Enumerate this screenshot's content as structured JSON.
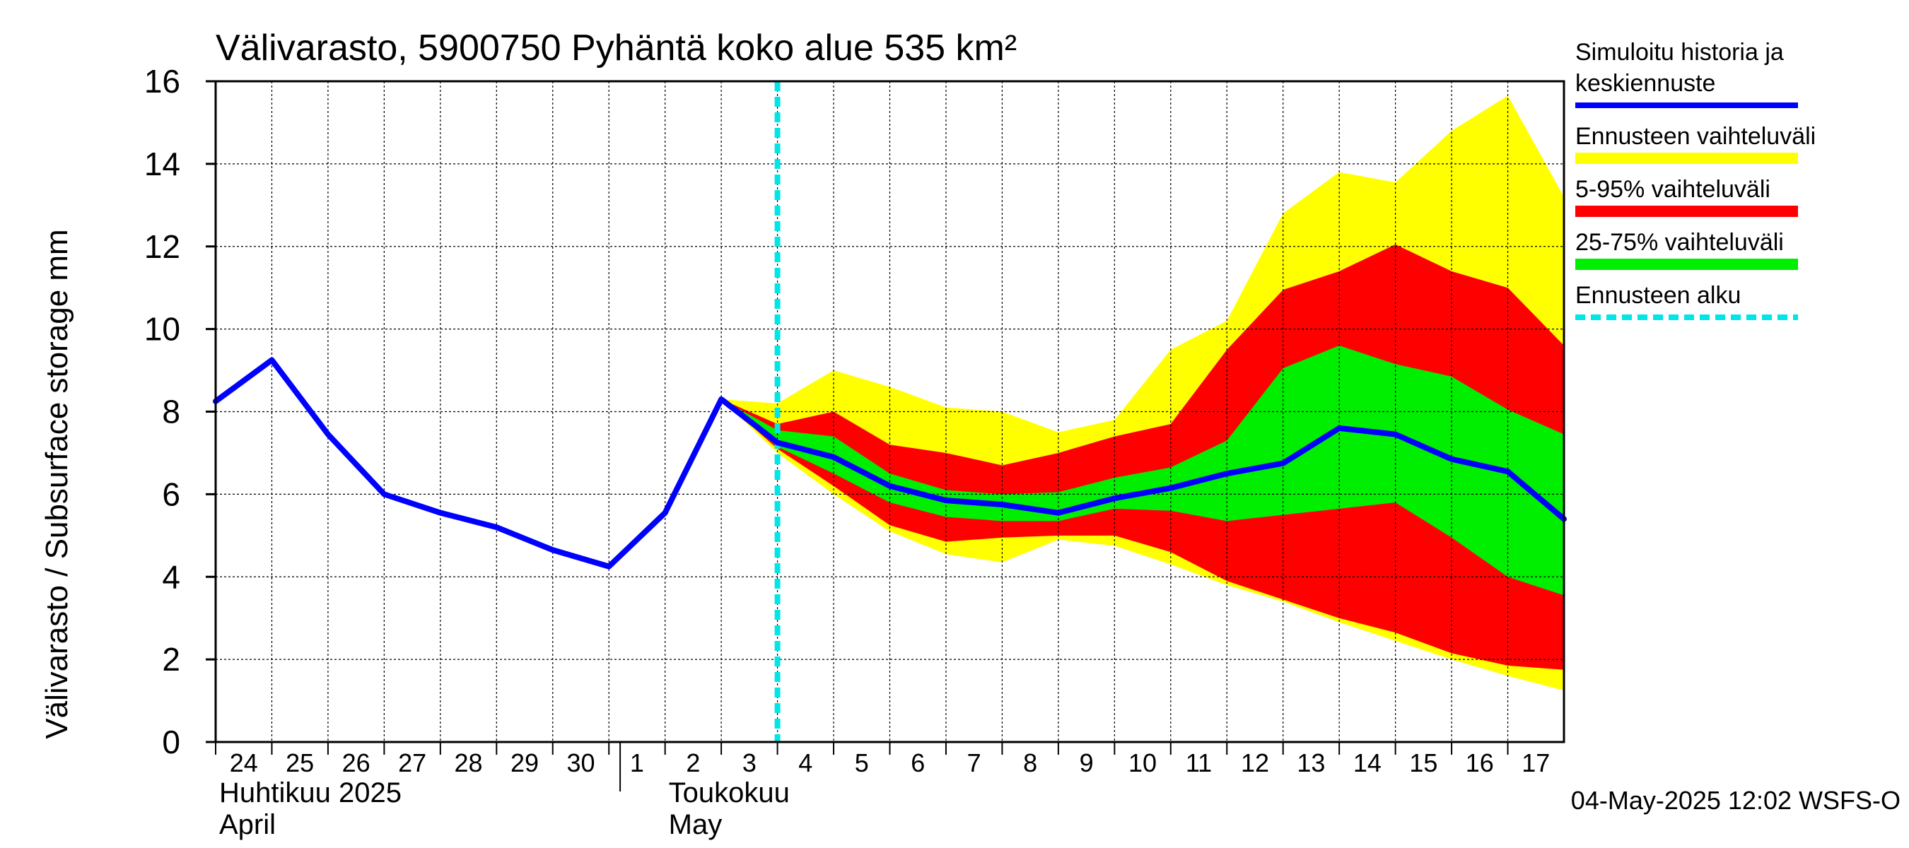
{
  "chart_data": {
    "type": "area",
    "title": "Välivarasto, 5900750 Pyhäntä koko alue 535 km²",
    "ylabel": "Välivarasto / Subsurface storage  mm",
    "ylim": [
      0,
      16
    ],
    "yticks": [
      0,
      2,
      4,
      6,
      8,
      10,
      12,
      14,
      16
    ],
    "x_day_labels": [
      "24",
      "25",
      "26",
      "27",
      "28",
      "29",
      "30",
      "1",
      "2",
      "3",
      "4",
      "5",
      "6",
      "7",
      "8",
      "9",
      "10",
      "11",
      "12",
      "13",
      "14",
      "15",
      "16",
      "17"
    ],
    "month_labels": [
      {
        "fi": "Huhtikuu  2025",
        "en": "April",
        "start_day_index": 0
      },
      {
        "fi": "Toukokuu",
        "en": "May",
        "start_day_index": 8
      }
    ],
    "grid": true,
    "forecast_start_day_index": 10.0,
    "series": [
      {
        "name": "Simuloitu historia ja keskiennuste",
        "color": "#0000ff",
        "x": [
          0,
          1,
          2,
          3,
          4,
          5,
          6,
          7,
          8,
          9,
          10,
          11,
          12,
          13,
          14,
          15,
          16,
          17,
          18,
          19,
          20,
          21,
          22,
          23,
          24
        ],
        "values": [
          8.25,
          9.25,
          7.45,
          6.0,
          5.55,
          5.2,
          4.65,
          4.25,
          5.55,
          8.3,
          7.25,
          6.9,
          6.2,
          5.85,
          5.75,
          5.55,
          5.9,
          6.15,
          6.5,
          6.75,
          7.6,
          7.45,
          6.85,
          6.55,
          5.4
        ]
      }
    ],
    "bands": [
      {
        "name": "Ennusteen vaihteluväli",
        "color": "#ffff00",
        "x": [
          9,
          10,
          11,
          12,
          13,
          14,
          15,
          16,
          17,
          18,
          19,
          20,
          21,
          22,
          23,
          24
        ],
        "upper": [
          8.3,
          8.2,
          9.0,
          8.6,
          8.1,
          8.0,
          7.5,
          7.8,
          9.5,
          10.2,
          12.8,
          13.8,
          13.55,
          14.8,
          15.65,
          13.2
        ],
        "lower": [
          8.3,
          7.0,
          6.0,
          5.1,
          4.55,
          4.35,
          4.9,
          4.75,
          4.3,
          3.8,
          3.4,
          2.9,
          2.45,
          2.0,
          1.6,
          1.25
        ]
      },
      {
        "name": "5-95% vaihteluväli",
        "color": "#ff0000",
        "x": [
          9,
          10,
          11,
          12,
          13,
          14,
          15,
          16,
          17,
          18,
          19,
          20,
          21,
          22,
          23,
          24
        ],
        "upper": [
          8.3,
          7.7,
          8.0,
          7.2,
          7.0,
          6.7,
          7.0,
          7.4,
          7.7,
          9.5,
          10.95,
          11.4,
          12.05,
          11.4,
          11.0,
          9.6
        ],
        "lower": [
          8.3,
          7.1,
          6.2,
          5.25,
          4.85,
          4.95,
          5.0,
          5.0,
          4.6,
          3.9,
          3.45,
          3.0,
          2.65,
          2.15,
          1.85,
          1.75
        ]
      },
      {
        "name": "25-75% vaihteluväli",
        "color": "#00ee00",
        "x": [
          9,
          10,
          11,
          12,
          13,
          14,
          15,
          16,
          17,
          18,
          19,
          20,
          21,
          22,
          23,
          24
        ],
        "upper": [
          8.3,
          7.55,
          7.4,
          6.5,
          6.1,
          6.0,
          6.05,
          6.4,
          6.65,
          7.3,
          9.05,
          9.6,
          9.15,
          8.85,
          8.05,
          7.45
        ],
        "lower": [
          8.3,
          7.15,
          6.5,
          5.8,
          5.45,
          5.35,
          5.35,
          5.65,
          5.6,
          5.35,
          5.5,
          5.65,
          5.8,
          4.95,
          4.0,
          3.55
        ]
      }
    ],
    "legend": [
      {
        "label": "Simuloitu historia ja keskiennuste",
        "color": "#0000ff",
        "style": "line"
      },
      {
        "label": "Ennusteen vaihteluväli",
        "color": "#ffff00",
        "style": "band"
      },
      {
        "label": "5-95% vaihteluväli",
        "color": "#ff0000",
        "style": "band"
      },
      {
        "label": "25-75% vaihteluväli",
        "color": "#00ee00",
        "style": "band"
      },
      {
        "label": "Ennusteen alku",
        "color": "#00e5e5",
        "style": "dashed"
      }
    ],
    "footer": "04-May-2025 12:02 WSFS-O"
  }
}
